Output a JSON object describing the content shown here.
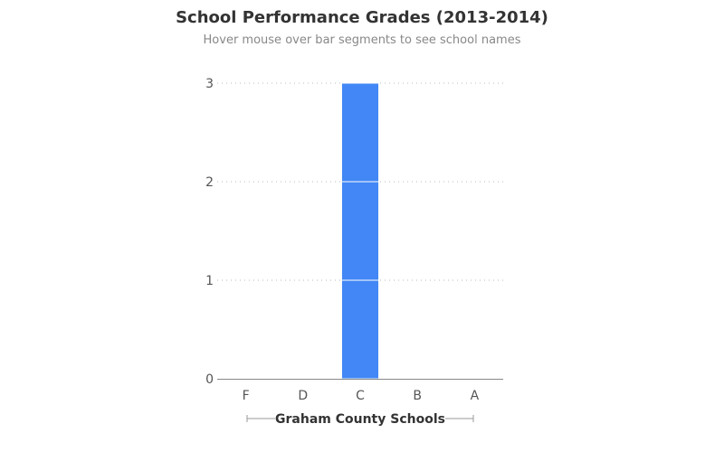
{
  "chart_data": {
    "type": "bar",
    "title": "School Performance Grades (2013-2014)",
    "subtitle": "Hover mouse over bar segments to see school names",
    "xlabel": "Graham County Schools",
    "ylabel": "",
    "categories": [
      "F",
      "D",
      "C",
      "B",
      "A"
    ],
    "values": [
      0,
      0,
      3,
      0,
      0
    ],
    "stacked_segments": true,
    "ylim": [
      0,
      3
    ],
    "yticks": [
      0,
      1,
      2,
      3
    ],
    "grid": true,
    "bar_color": "#4287f5",
    "grid_color": "#bbbbbb",
    "axis_color": "#888888"
  }
}
